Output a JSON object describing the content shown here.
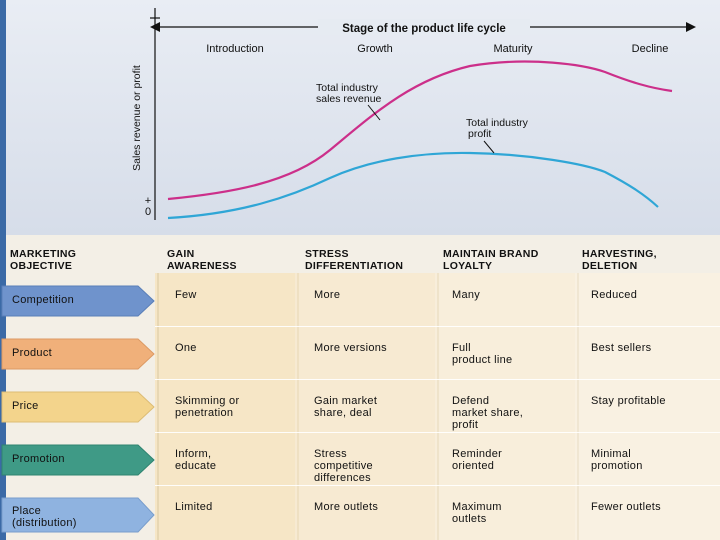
{
  "chart": {
    "axis_title": "Stage of the product life cycle",
    "y_label": "Sales revenue or profit",
    "y_plus": "+",
    "y_zero": "0",
    "stages": [
      "Introduction",
      "Growth",
      "Maturity",
      "Decline"
    ],
    "revenue_label": [
      "Total industry",
      "sales revenue"
    ],
    "profit_label": [
      "Total industry",
      "profit"
    ],
    "colors": {
      "revenue": "#cc2f8a",
      "profit": "#2fa6d6"
    }
  },
  "table": {
    "headers": [
      [
        "MARKETING",
        "OBJECTIVE"
      ],
      [
        "GAIN",
        "AWARENESS"
      ],
      [
        "STRESS",
        "DIFFERENTIATION"
      ],
      [
        "MAINTAIN BRAND",
        "LOYALTY"
      ],
      [
        "HARVESTING,",
        "DELETION"
      ]
    ],
    "rows": [
      {
        "label": [
          "Competition"
        ],
        "color": "#6f93cc",
        "cells": [
          [
            "Few"
          ],
          [
            "More"
          ],
          [
            "Many"
          ],
          [
            "Reduced"
          ]
        ]
      },
      {
        "label": [
          "Product"
        ],
        "color": "#f0b07a",
        "cells": [
          [
            "One"
          ],
          [
            "More versions"
          ],
          [
            "Full",
            "product line"
          ],
          [
            "Best sellers"
          ]
        ]
      },
      {
        "label": [
          "Price"
        ],
        "color": "#f3d48c",
        "cells": [
          [
            "Skimming or",
            "penetration"
          ],
          [
            "Gain market",
            "share, deal"
          ],
          [
            "Defend",
            "market share,",
            "profit"
          ],
          [
            "Stay profitable"
          ]
        ]
      },
      {
        "label": [
          "Promotion"
        ],
        "color": "#3f9a86",
        "cells": [
          [
            "Inform,",
            "educate"
          ],
          [
            "Stress",
            "competitive",
            "differences"
          ],
          [
            "Reminder",
            "oriented"
          ],
          [
            "Minimal",
            "promotion"
          ]
        ]
      },
      {
        "label": [
          "Place",
          "(distribution)"
        ],
        "color": "#8fb3e0",
        "cells": [
          [
            "Limited"
          ],
          [
            "More outlets"
          ],
          [
            "Maximum",
            "outlets"
          ],
          [
            "Fewer outlets"
          ]
        ]
      }
    ]
  }
}
